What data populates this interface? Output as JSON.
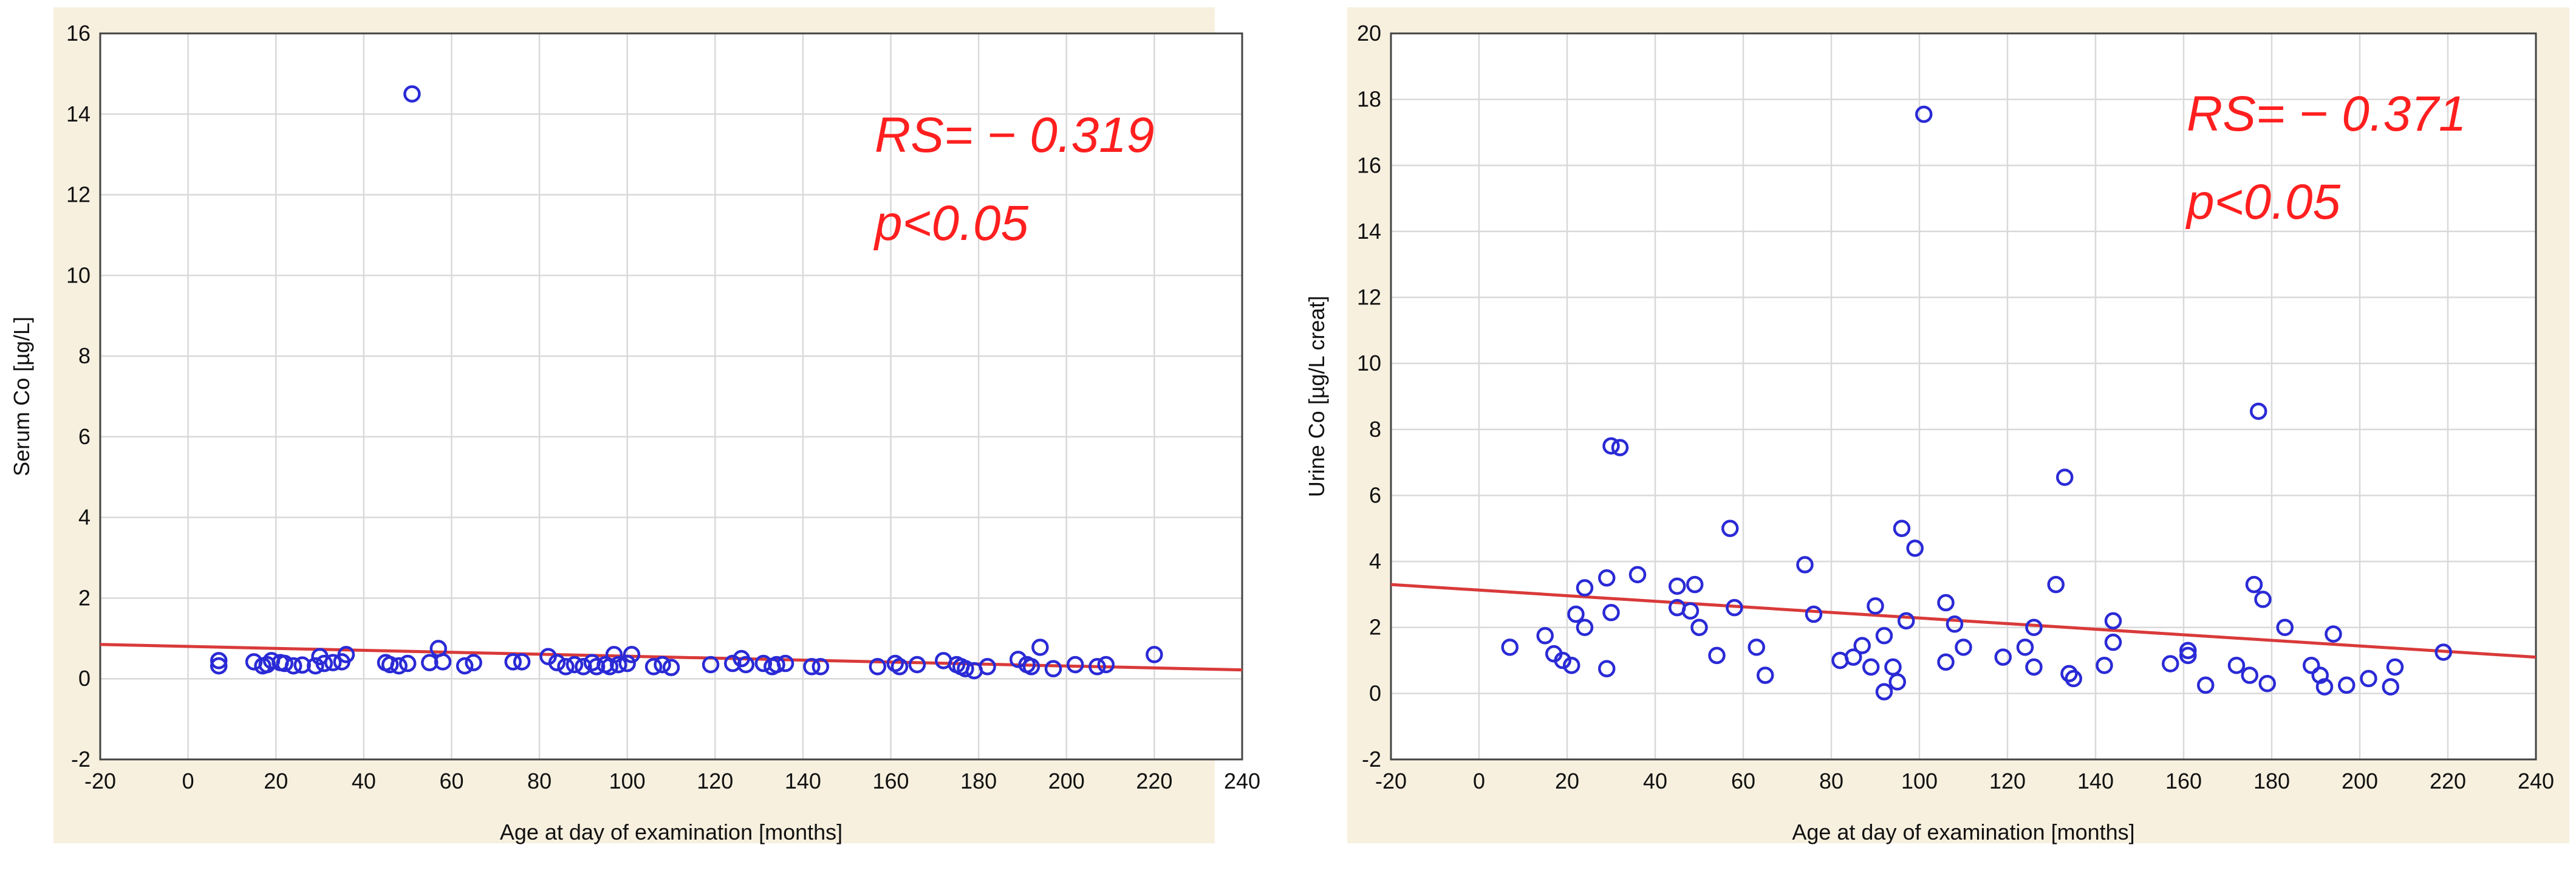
{
  "chart_data": [
    {
      "type": "scatter",
      "ylabel": "Serum Co [µg/L]",
      "xlabel": "Age at day of examination [months]",
      "xlim": [
        -20,
        240
      ],
      "ylim": [
        -2,
        16
      ],
      "xticks": [
        -20,
        0,
        20,
        40,
        60,
        80,
        100,
        120,
        140,
        160,
        180,
        200,
        220,
        240
      ],
      "yticks": [
        -2,
        0,
        2,
        4,
        6,
        8,
        10,
        12,
        14,
        16
      ],
      "xtick_labels": [
        "-20",
        "0",
        "20",
        "40",
        "60",
        "80",
        "100",
        "120",
        "140",
        "160",
        "180",
        "200",
        "220",
        "240"
      ],
      "ytick_labels": [
        "-2",
        "0",
        "2",
        "4",
        "6",
        "8",
        "10",
        "12",
        "14",
        "16"
      ],
      "grid": true,
      "marker_color": "#2a2ad6",
      "trend_color": "#d93a3a",
      "annotation_color": "#ff1f1f",
      "annotations": [
        "RS= − 0.319",
        "p<0.05"
      ],
      "trendline": {
        "x": [
          -20,
          240
        ],
        "y": [
          0.85,
          0.22
        ]
      },
      "points": [
        {
          "x": 7,
          "y": 0.45
        },
        {
          "x": 7,
          "y": 0.32
        },
        {
          "x": 15,
          "y": 0.42
        },
        {
          "x": 17,
          "y": 0.32
        },
        {
          "x": 18,
          "y": 0.35
        },
        {
          "x": 19,
          "y": 0.45
        },
        {
          "x": 21,
          "y": 0.4
        },
        {
          "x": 22,
          "y": 0.38
        },
        {
          "x": 24,
          "y": 0.32
        },
        {
          "x": 26,
          "y": 0.34
        },
        {
          "x": 29,
          "y": 0.32
        },
        {
          "x": 30,
          "y": 0.55
        },
        {
          "x": 31,
          "y": 0.38
        },
        {
          "x": 33,
          "y": 0.4
        },
        {
          "x": 35,
          "y": 0.42
        },
        {
          "x": 36,
          "y": 0.6
        },
        {
          "x": 45,
          "y": 0.4
        },
        {
          "x": 46,
          "y": 0.35
        },
        {
          "x": 48,
          "y": 0.32
        },
        {
          "x": 50,
          "y": 0.38
        },
        {
          "x": 51,
          "y": 14.5
        },
        {
          "x": 55,
          "y": 0.4
        },
        {
          "x": 57,
          "y": 0.75
        },
        {
          "x": 58,
          "y": 0.42
        },
        {
          "x": 63,
          "y": 0.32
        },
        {
          "x": 65,
          "y": 0.4
        },
        {
          "x": 74,
          "y": 0.42
        },
        {
          "x": 76,
          "y": 0.42
        },
        {
          "x": 82,
          "y": 0.55
        },
        {
          "x": 84,
          "y": 0.4
        },
        {
          "x": 86,
          "y": 0.3
        },
        {
          "x": 88,
          "y": 0.35
        },
        {
          "x": 90,
          "y": 0.3
        },
        {
          "x": 92,
          "y": 0.4
        },
        {
          "x": 93,
          "y": 0.3
        },
        {
          "x": 95,
          "y": 0.35
        },
        {
          "x": 96,
          "y": 0.3
        },
        {
          "x": 97,
          "y": 0.6
        },
        {
          "x": 98,
          "y": 0.35
        },
        {
          "x": 100,
          "y": 0.38
        },
        {
          "x": 101,
          "y": 0.6
        },
        {
          "x": 106,
          "y": 0.3
        },
        {
          "x": 108,
          "y": 0.35
        },
        {
          "x": 110,
          "y": 0.28
        },
        {
          "x": 119,
          "y": 0.35
        },
        {
          "x": 124,
          "y": 0.38
        },
        {
          "x": 126,
          "y": 0.5
        },
        {
          "x": 127,
          "y": 0.35
        },
        {
          "x": 131,
          "y": 0.38
        },
        {
          "x": 133,
          "y": 0.3
        },
        {
          "x": 134,
          "y": 0.35
        },
        {
          "x": 136,
          "y": 0.38
        },
        {
          "x": 142,
          "y": 0.3
        },
        {
          "x": 144,
          "y": 0.3
        },
        {
          "x": 157,
          "y": 0.3
        },
        {
          "x": 161,
          "y": 0.38
        },
        {
          "x": 162,
          "y": 0.3
        },
        {
          "x": 166,
          "y": 0.35
        },
        {
          "x": 172,
          "y": 0.45
        },
        {
          "x": 175,
          "y": 0.35
        },
        {
          "x": 176,
          "y": 0.3
        },
        {
          "x": 177,
          "y": 0.25
        },
        {
          "x": 179,
          "y": 0.2
        },
        {
          "x": 182,
          "y": 0.3
        },
        {
          "x": 189,
          "y": 0.48
        },
        {
          "x": 191,
          "y": 0.35
        },
        {
          "x": 192,
          "y": 0.3
        },
        {
          "x": 194,
          "y": 0.78
        },
        {
          "x": 197,
          "y": 0.25
        },
        {
          "x": 202,
          "y": 0.35
        },
        {
          "x": 207,
          "y": 0.3
        },
        {
          "x": 209,
          "y": 0.35
        },
        {
          "x": 220,
          "y": 0.6
        }
      ]
    },
    {
      "type": "scatter",
      "ylabel": "Urine Co [µg/L creat]",
      "xlabel": "Age at day of examination [months]",
      "xlim": [
        -20,
        240
      ],
      "ylim": [
        -2,
        20
      ],
      "xticks": [
        -20,
        0,
        20,
        40,
        60,
        80,
        100,
        120,
        140,
        160,
        180,
        200,
        220,
        240
      ],
      "yticks": [
        -2,
        0,
        2,
        4,
        6,
        8,
        10,
        12,
        14,
        16,
        18,
        20
      ],
      "xtick_labels": [
        "-20",
        "0",
        "20",
        "40",
        "60",
        "80",
        "100",
        "120",
        "140",
        "160",
        "180",
        "200",
        "220",
        "240"
      ],
      "ytick_labels": [
        "-2",
        "0",
        "2",
        "4",
        "6",
        "8",
        "10",
        "12",
        "14",
        "16",
        "18",
        "20"
      ],
      "grid": true,
      "marker_color": "#2a2ad6",
      "trend_color": "#d93a3a",
      "annotation_color": "#ff1f1f",
      "annotations": [
        "RS= − 0.371",
        "p<0.05"
      ],
      "trendline": {
        "x": [
          -20,
          240
        ],
        "y": [
          3.3,
          1.1
        ]
      },
      "points": [
        {
          "x": 7,
          "y": 1.4
        },
        {
          "x": 15,
          "y": 1.75
        },
        {
          "x": 17,
          "y": 1.2
        },
        {
          "x": 19,
          "y": 1.0
        },
        {
          "x": 21,
          "y": 0.85
        },
        {
          "x": 22,
          "y": 2.4
        },
        {
          "x": 24,
          "y": 2.0
        },
        {
          "x": 24,
          "y": 3.2
        },
        {
          "x": 29,
          "y": 3.5
        },
        {
          "x": 29,
          "y": 0.75
        },
        {
          "x": 30,
          "y": 2.45
        },
        {
          "x": 30,
          "y": 7.5
        },
        {
          "x": 32,
          "y": 7.45
        },
        {
          "x": 36,
          "y": 3.6
        },
        {
          "x": 45,
          "y": 3.25
        },
        {
          "x": 45,
          "y": 2.6
        },
        {
          "x": 48,
          "y": 2.5
        },
        {
          "x": 49,
          "y": 3.3
        },
        {
          "x": 50,
          "y": 2.0
        },
        {
          "x": 54,
          "y": 1.15
        },
        {
          "x": 57,
          "y": 5.0
        },
        {
          "x": 58,
          "y": 2.6
        },
        {
          "x": 63,
          "y": 1.4
        },
        {
          "x": 65,
          "y": 0.55
        },
        {
          "x": 74,
          "y": 3.9
        },
        {
          "x": 76,
          "y": 2.4
        },
        {
          "x": 82,
          "y": 1.0
        },
        {
          "x": 85,
          "y": 1.1
        },
        {
          "x": 87,
          "y": 1.45
        },
        {
          "x": 89,
          "y": 0.8
        },
        {
          "x": 90,
          "y": 2.65
        },
        {
          "x": 92,
          "y": 1.75
        },
        {
          "x": 92,
          "y": 0.05
        },
        {
          "x": 94,
          "y": 0.8
        },
        {
          "x": 95,
          "y": 0.35
        },
        {
          "x": 96,
          "y": 5.0
        },
        {
          "x": 97,
          "y": 2.2
        },
        {
          "x": 99,
          "y": 4.4
        },
        {
          "x": 101,
          "y": 17.55
        },
        {
          "x": 106,
          "y": 2.75
        },
        {
          "x": 106,
          "y": 0.95
        },
        {
          "x": 108,
          "y": 2.1
        },
        {
          "x": 110,
          "y": 1.4
        },
        {
          "x": 119,
          "y": 1.1
        },
        {
          "x": 124,
          "y": 1.4
        },
        {
          "x": 126,
          "y": 2.0
        },
        {
          "x": 126,
          "y": 0.8
        },
        {
          "x": 131,
          "y": 3.3
        },
        {
          "x": 133,
          "y": 6.55
        },
        {
          "x": 134,
          "y": 0.6
        },
        {
          "x": 135,
          "y": 0.45
        },
        {
          "x": 142,
          "y": 0.85
        },
        {
          "x": 144,
          "y": 1.55
        },
        {
          "x": 144,
          "y": 2.2
        },
        {
          "x": 157,
          "y": 0.9
        },
        {
          "x": 161,
          "y": 1.3
        },
        {
          "x": 161,
          "y": 1.15
        },
        {
          "x": 165,
          "y": 0.25
        },
        {
          "x": 172,
          "y": 0.85
        },
        {
          "x": 175,
          "y": 0.55
        },
        {
          "x": 176,
          "y": 3.3
        },
        {
          "x": 177,
          "y": 8.55
        },
        {
          "x": 178,
          "y": 2.85
        },
        {
          "x": 179,
          "y": 0.3
        },
        {
          "x": 183,
          "y": 2.0
        },
        {
          "x": 189,
          "y": 0.85
        },
        {
          "x": 191,
          "y": 0.55
        },
        {
          "x": 192,
          "y": 0.2
        },
        {
          "x": 194,
          "y": 1.8
        },
        {
          "x": 197,
          "y": 0.25
        },
        {
          "x": 202,
          "y": 0.45
        },
        {
          "x": 207,
          "y": 0.2
        },
        {
          "x": 208,
          "y": 0.8
        },
        {
          "x": 219,
          "y": 1.25
        }
      ]
    }
  ]
}
